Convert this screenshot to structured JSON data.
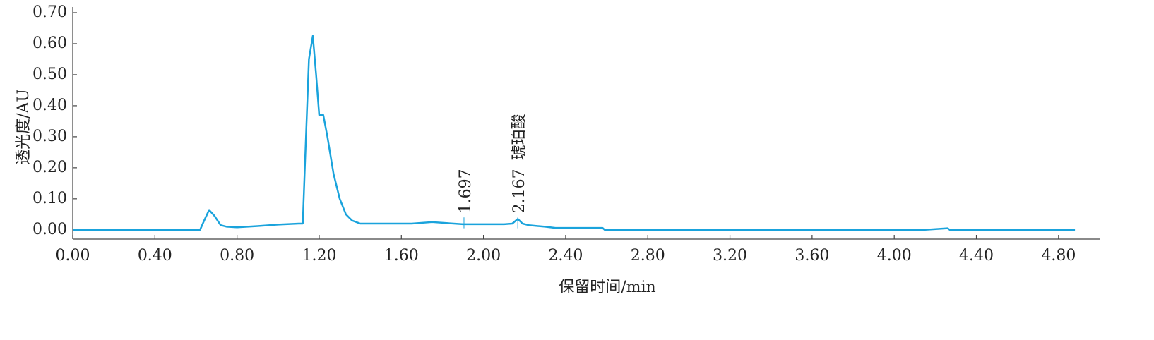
{
  "chart_data": {
    "type": "line",
    "x_label": "保留时间/min",
    "y_label": "透光度/AU",
    "x": [
      0,
      0.62,
      0.64,
      0.664,
      0.69,
      0.72,
      0.75,
      0.8,
      0.9,
      1.0,
      1.1,
      1.12,
      1.13,
      1.15,
      1.169,
      1.185,
      1.2,
      1.22,
      1.24,
      1.27,
      1.3,
      1.33,
      1.36,
      1.4,
      1.5,
      1.65,
      1.75,
      1.9,
      2.1,
      2.14,
      2.167,
      2.19,
      2.22,
      2.3,
      2.35,
      2.58,
      2.59,
      4.15,
      4.26,
      4.27,
      4.88
    ],
    "series": [
      {
        "color": "#1aa3dc",
        "values": [
          0,
          0,
          0.03,
          0.064,
          0.045,
          0.015,
          0.01,
          0.008,
          0.012,
          0.017,
          0.02,
          0.02,
          0.2,
          0.55,
          0.625,
          0.5,
          0.37,
          0.37,
          0.3,
          0.18,
          0.1,
          0.05,
          0.03,
          0.02,
          0.02,
          0.02,
          0.025,
          0.018,
          0.018,
          0.02,
          0.035,
          0.02,
          0.015,
          0.01,
          0.006,
          0.006,
          0,
          0,
          0.005,
          0,
          0
        ]
      }
    ],
    "annotations": [
      {
        "text": "1.697",
        "x": 1.905
      },
      {
        "text": "2.167",
        "x": 2.167
      },
      {
        "text": "琥珀酸",
        "x": 2.167
      }
    ],
    "xlim": [
      0,
      5.0
    ],
    "ylim": [
      -0.03,
      0.7
    ],
    "xticks": [
      {
        "value": 0,
        "label": "0.00"
      },
      {
        "value": 0.4,
        "label": "0.40"
      },
      {
        "value": 0.8,
        "label": "0.80"
      },
      {
        "value": 1.2,
        "label": "1.20"
      },
      {
        "value": 1.6,
        "label": "1.60"
      },
      {
        "value": 2.0,
        "label": "2.00"
      },
      {
        "value": 2.4,
        "label": "2.40"
      },
      {
        "value": 2.8,
        "label": "2.80"
      },
      {
        "value": 3.2,
        "label": "3.20"
      },
      {
        "value": 3.6,
        "label": "3.60"
      },
      {
        "value": 4.0,
        "label": "4.00"
      },
      {
        "value": 4.4,
        "label": "4.40"
      },
      {
        "value": 4.8,
        "label": "4.80"
      }
    ],
    "yticks": [
      {
        "value": 0,
        "label": "0.00"
      },
      {
        "value": 0.1,
        "label": "0.10"
      },
      {
        "value": 0.2,
        "label": "0.20"
      },
      {
        "value": 0.3,
        "label": "0.30"
      },
      {
        "value": 0.4,
        "label": "0.40"
      },
      {
        "value": 0.5,
        "label": "0.50"
      },
      {
        "value": 0.6,
        "label": "0.60"
      },
      {
        "value": 0.7,
        "label": "0.70"
      }
    ]
  }
}
